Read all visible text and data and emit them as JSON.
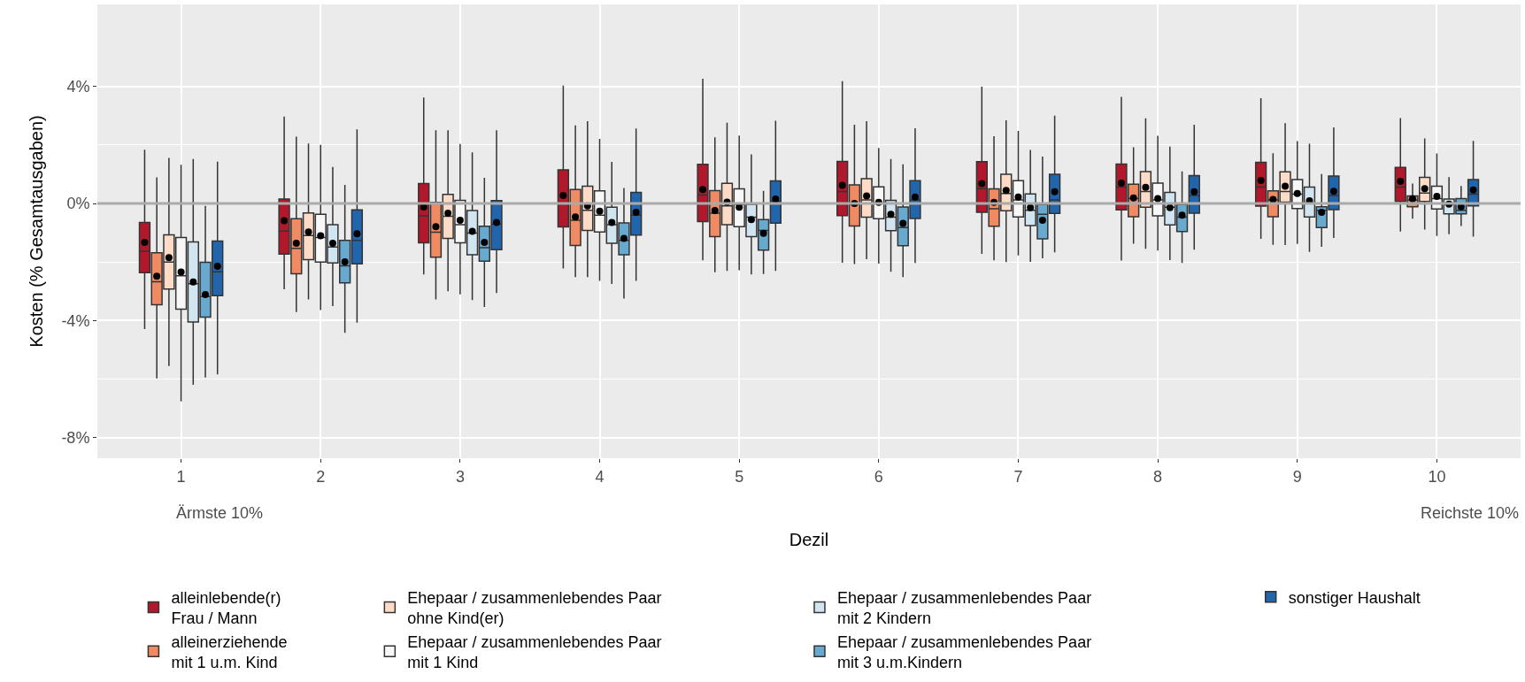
{
  "chart_data": {
    "type": "box",
    "xlabel": "Dezil",
    "ylabel": "Kosten (% Gesamtausgaben)",
    "categories": [
      "1",
      "2",
      "3",
      "4",
      "5",
      "6",
      "7",
      "8",
      "9",
      "10"
    ],
    "ylim": [
      -8.7,
      6.8
    ],
    "yticks": [
      {
        "value": -8,
        "label": "-8%"
      },
      {
        "value": -4,
        "label": "-4%"
      },
      {
        "value": 0,
        "label": "0%"
      },
      {
        "value": 4,
        "label": "4%"
      }
    ],
    "grid": true,
    "legend": "bottom",
    "marker": "circle",
    "ref_lines": [
      {
        "axis": "y",
        "value": 0,
        "color": "#aaaaaa"
      }
    ],
    "annotations": [
      "Ärmste 10%",
      "Reichste 10%"
    ],
    "series": [
      {
        "name": "alleinlebende(r)\nFrau / Mann",
        "color": "#b2182b",
        "boxes": [
          {
            "low": -4.29,
            "q1": -2.36,
            "median": -1.63,
            "q3": -0.65,
            "high": 1.84,
            "mean": -1.33
          },
          {
            "low": -2.93,
            "q1": -1.73,
            "median": -0.94,
            "q3": 0.15,
            "high": 2.97,
            "mean": -0.59
          },
          {
            "low": -2.42,
            "q1": -1.34,
            "median": -0.42,
            "q3": 0.68,
            "high": 3.62,
            "mean": -0.12
          },
          {
            "low": -2.22,
            "q1": -0.8,
            "median": -0.01,
            "q3": 1.15,
            "high": 4.03,
            "mean": 0.27
          },
          {
            "low": -1.94,
            "q1": -0.62,
            "median": 0.29,
            "q3": 1.34,
            "high": 4.26,
            "mean": 0.48
          },
          {
            "low": -2.02,
            "q1": -0.41,
            "median": 0.41,
            "q3": 1.44,
            "high": 4.18,
            "mean": 0.62
          },
          {
            "low": -1.72,
            "q1": -0.3,
            "median": 0.51,
            "q3": 1.43,
            "high": 3.99,
            "mean": 0.68
          },
          {
            "low": -1.95,
            "q1": -0.22,
            "median": 0.56,
            "q3": 1.35,
            "high": 3.64,
            "mean": 0.7
          },
          {
            "low": -1.21,
            "q1": -0.09,
            "median": 0.56,
            "q3": 1.41,
            "high": 3.6,
            "mean": 0.79
          },
          {
            "low": -0.96,
            "q1": 0.07,
            "median": 0.56,
            "q3": 1.23,
            "high": 2.92,
            "mean": 0.76
          }
        ]
      },
      {
        "name": "alleinerziehende\nmit 1 u.m. Kind",
        "color": "#ef8a62",
        "boxes": [
          {
            "low": -5.97,
            "q1": -3.46,
            "median": -2.67,
            "q3": -1.68,
            "high": 0.89,
            "mean": -2.48
          },
          {
            "low": -3.71,
            "q1": -2.4,
            "median": -1.53,
            "q3": -0.52,
            "high": 2.28,
            "mean": -1.36
          },
          {
            "low": -3.28,
            "q1": -1.83,
            "median": -0.98,
            "q3": 0.04,
            "high": 2.5,
            "mean": -0.79
          },
          {
            "low": -2.51,
            "q1": -1.43,
            "median": -0.57,
            "q3": 0.48,
            "high": 2.67,
            "mean": -0.46
          },
          {
            "low": -2.35,
            "q1": -1.13,
            "median": -0.33,
            "q3": 0.44,
            "high": 2.26,
            "mean": -0.24
          },
          {
            "low": -2.07,
            "q1": -0.77,
            "median": -0.03,
            "q3": 0.64,
            "high": 2.69,
            "mean": 0.0
          },
          {
            "low": -1.94,
            "q1": -0.78,
            "median": -0.18,
            "q3": 0.5,
            "high": 2.3,
            "mean": 0.04
          },
          {
            "low": -1.37,
            "q1": -0.45,
            "median": 0.17,
            "q3": 0.66,
            "high": 1.92,
            "mean": 0.19
          },
          {
            "low": -1.41,
            "q1": -0.45,
            "median": 0.12,
            "q3": 0.43,
            "high": 1.72,
            "mean": 0.14
          },
          {
            "low": -0.52,
            "q1": -0.11,
            "median": 0.12,
            "q3": 0.26,
            "high": 0.68,
            "mean": 0.16
          }
        ]
      },
      {
        "name": "Ehepaar / zusammenlebendes Paar\nohne Kind(er)",
        "color": "#fddbc7",
        "boxes": [
          {
            "low": -5.55,
            "q1": -2.92,
            "median": -2.0,
            "q3": -1.07,
            "high": 1.56,
            "mean": -1.85
          },
          {
            "low": -3.28,
            "q1": -1.92,
            "median": -1.09,
            "q3": -0.32,
            "high": 2.05,
            "mean": -0.97
          },
          {
            "low": -3.0,
            "q1": -1.19,
            "median": -0.44,
            "q3": 0.31,
            "high": 2.5,
            "mean": -0.33
          },
          {
            "low": -2.51,
            "q1": -0.92,
            "median": -0.23,
            "q3": 0.59,
            "high": 2.81,
            "mean": -0.08
          },
          {
            "low": -2.3,
            "q1": -0.72,
            "median": -0.08,
            "q3": 0.69,
            "high": 2.76,
            "mean": 0.05
          },
          {
            "low": -1.9,
            "q1": -0.47,
            "median": 0.12,
            "q3": 0.85,
            "high": 2.81,
            "mean": 0.26
          },
          {
            "low": -2.0,
            "q1": -0.25,
            "median": 0.34,
            "q3": 1.0,
            "high": 2.84,
            "mean": 0.45
          },
          {
            "low": -1.55,
            "q1": -0.13,
            "median": 0.41,
            "q3": 1.09,
            "high": 2.91,
            "mean": 0.55
          },
          {
            "low": -1.42,
            "q1": 0.05,
            "median": 0.41,
            "q3": 1.08,
            "high": 2.74,
            "mean": 0.59
          },
          {
            "low": -0.89,
            "q1": 0.07,
            "median": 0.36,
            "q3": 0.89,
            "high": 2.22,
            "mean": 0.51
          }
        ]
      },
      {
        "name": "Ehepaar / zusammenlebendes Paar\nmit 1 Kind",
        "color": "#f7f7f7",
        "boxes": [
          {
            "low": -6.76,
            "q1": -3.61,
            "median": -2.47,
            "q3": -1.16,
            "high": 1.32,
            "mean": -2.34
          },
          {
            "low": -3.64,
            "q1": -2.0,
            "median": -1.16,
            "q3": -0.37,
            "high": 2.0,
            "mean": -1.1
          },
          {
            "low": -3.1,
            "q1": -1.34,
            "median": -0.72,
            "q3": 0.11,
            "high": 2.03,
            "mean": -0.57
          },
          {
            "low": -2.64,
            "q1": -0.97,
            "median": -0.4,
            "q3": 0.43,
            "high": 2.21,
            "mean": -0.26
          },
          {
            "low": -2.28,
            "q1": -0.79,
            "median": -0.03,
            "q3": 0.5,
            "high": 2.32,
            "mean": -0.13
          },
          {
            "low": -2.05,
            "q1": -0.52,
            "median": 0.02,
            "q3": 0.57,
            "high": 1.9,
            "mean": 0.04
          },
          {
            "low": -1.77,
            "q1": -0.46,
            "median": 0.12,
            "q3": 0.78,
            "high": 2.48,
            "mean": 0.22
          },
          {
            "low": -1.61,
            "q1": -0.42,
            "median": 0.12,
            "q3": 0.7,
            "high": 2.31,
            "mean": 0.17
          },
          {
            "low": -1.38,
            "q1": -0.17,
            "median": 0.32,
            "q3": 0.82,
            "high": 2.13,
            "mean": 0.34
          },
          {
            "low": -1.11,
            "q1": -0.19,
            "median": 0.17,
            "q3": 0.59,
            "high": 1.71,
            "mean": 0.24
          }
        ]
      },
      {
        "name": "Ehepaar / zusammenlebendes Paar\nmit 2 Kindern",
        "color": "#d1e5f0",
        "boxes": [
          {
            "low": -6.19,
            "q1": -4.05,
            "median": -2.74,
            "q3": -1.31,
            "high": 1.52,
            "mean": -2.68
          },
          {
            "low": -3.5,
            "q1": -2.03,
            "median": -1.49,
            "q3": -0.72,
            "high": 1.25,
            "mean": -1.36
          },
          {
            "low": -3.3,
            "q1": -1.75,
            "median": -1.01,
            "q3": -0.24,
            "high": 1.75,
            "mean": -0.95
          },
          {
            "low": -2.75,
            "q1": -1.36,
            "median": -0.72,
            "q3": -0.13,
            "high": 1.42,
            "mean": -0.65
          },
          {
            "low": -2.42,
            "q1": -1.13,
            "median": -0.47,
            "q3": -0.03,
            "high": 1.68,
            "mean": -0.55
          },
          {
            "low": -2.33,
            "q1": -0.93,
            "median": -0.47,
            "q3": 0.11,
            "high": 1.52,
            "mean": -0.37
          },
          {
            "low": -1.99,
            "q1": -0.75,
            "median": -0.23,
            "q3": 0.33,
            "high": 1.83,
            "mean": -0.14
          },
          {
            "low": -1.93,
            "q1": -0.73,
            "median": -0.13,
            "q3": 0.38,
            "high": 1.94,
            "mean": -0.14
          },
          {
            "low": -1.65,
            "q1": -0.46,
            "median": 0.02,
            "q3": 0.56,
            "high": 2.04,
            "mean": 0.09
          },
          {
            "low": -1.05,
            "q1": -0.35,
            "median": -0.03,
            "q3": 0.15,
            "high": 0.9,
            "mean": -0.02
          }
        ]
      },
      {
        "name": "Ehepaar / zusammenlebendes Paar\nmit 3 u.m.Kindern",
        "color": "#67a9cf",
        "boxes": [
          {
            "low": -5.94,
            "q1": -3.88,
            "median": -3.18,
            "q3": -2.01,
            "high": -0.08,
            "mean": -3.11
          },
          {
            "low": -4.42,
            "q1": -2.71,
            "median": -2.13,
            "q3": -1.26,
            "high": 0.64,
            "mean": -1.99
          },
          {
            "low": -3.53,
            "q1": -1.97,
            "median": -1.51,
            "q3": -0.78,
            "high": 0.88,
            "mean": -1.33
          },
          {
            "low": -3.25,
            "q1": -1.75,
            "median": -1.26,
            "q3": -0.66,
            "high": 0.53,
            "mean": -1.19
          },
          {
            "low": -2.41,
            "q1": -1.59,
            "median": -0.92,
            "q3": -0.55,
            "high": 0.43,
            "mean": -1.02
          },
          {
            "low": -2.51,
            "q1": -1.44,
            "median": -0.82,
            "q3": -0.12,
            "high": 1.34,
            "mean": -0.68
          },
          {
            "low": -1.87,
            "q1": -1.21,
            "median": -0.37,
            "q3": -0.03,
            "high": 1.6,
            "mean": -0.57
          },
          {
            "low": -2.03,
            "q1": -0.96,
            "median": -0.47,
            "q3": -0.03,
            "high": 1.1,
            "mean": -0.4
          },
          {
            "low": -1.48,
            "q1": -0.82,
            "median": -0.23,
            "q3": -0.11,
            "high": 1.01,
            "mean": -0.3
          },
          {
            "low": -0.77,
            "q1": -0.35,
            "median": -0.23,
            "q3": 0.17,
            "high": 0.6,
            "mean": -0.11
          }
        ]
      },
      {
        "name": "sonstiger Haushalt",
        "color": "#2166ac",
        "boxes": [
          {
            "low": -5.84,
            "q1": -3.15,
            "median": -2.33,
            "q3": -1.28,
            "high": 1.43,
            "mean": -2.14
          },
          {
            "low": -4.07,
            "q1": -2.06,
            "median": -1.26,
            "q3": -0.22,
            "high": 2.53,
            "mean": -1.03
          },
          {
            "low": -3.06,
            "q1": -1.58,
            "median": -0.7,
            "q3": 0.1,
            "high": 2.5,
            "mean": -0.65
          },
          {
            "low": -2.64,
            "q1": -1.08,
            "median": -0.4,
            "q3": 0.38,
            "high": 2.56,
            "mean": -0.3
          },
          {
            "low": -2.3,
            "q1": -0.67,
            "median": 0.07,
            "q3": 0.77,
            "high": 2.83,
            "mean": 0.15
          },
          {
            "low": -2.03,
            "q1": -0.51,
            "median": 0.12,
            "q3": 0.78,
            "high": 2.57,
            "mean": 0.22
          },
          {
            "low": -1.67,
            "q1": -0.34,
            "median": 0.12,
            "q3": 1.0,
            "high": 3.0,
            "mean": 0.4
          },
          {
            "low": -1.58,
            "q1": -0.33,
            "median": 0.27,
            "q3": 0.95,
            "high": 2.69,
            "mean": 0.4
          },
          {
            "low": -1.18,
            "q1": -0.21,
            "median": 0.27,
            "q3": 0.94,
            "high": 2.6,
            "mean": 0.42
          },
          {
            "low": -1.13,
            "q1": -0.08,
            "median": 0.32,
            "q3": 0.82,
            "high": 2.14,
            "mean": 0.46
          }
        ]
      }
    ]
  }
}
